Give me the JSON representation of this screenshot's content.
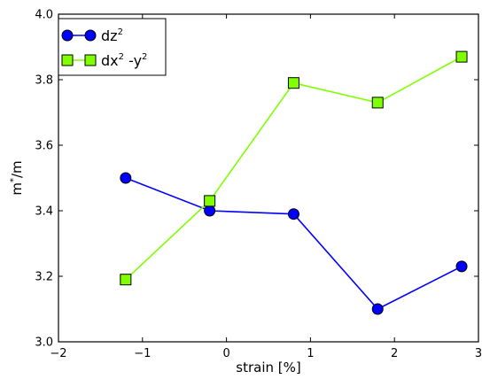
{
  "chart_data": {
    "type": "line",
    "xlabel": "strain [%]",
    "ylabel": "m*/m",
    "ylabel_parts": {
      "base": "m",
      "sup": "*",
      "rest": "/m"
    },
    "xlim": [
      -2,
      3
    ],
    "ylim": [
      3.0,
      4.0
    ],
    "xticks": [
      -2,
      -1,
      0,
      1,
      2,
      3
    ],
    "yticks": [
      3.0,
      3.2,
      3.4,
      3.6,
      3.8,
      4.0
    ],
    "xtick_labels": [
      "−2",
      "−1",
      "0",
      "1",
      "2",
      "3"
    ],
    "ytick_labels": [
      "3.0",
      "3.2",
      "3.4",
      "3.6",
      "3.8",
      "4.0"
    ],
    "grid": false,
    "legend_position": "upper-left",
    "series": [
      {
        "name": "dz2",
        "legend": {
          "base": "dz",
          "sup": "2"
        },
        "marker": "circle",
        "color": "#0000ff",
        "x": [
          -1.2,
          -0.2,
          0.8,
          1.8,
          2.8
        ],
        "y": [
          3.5,
          3.4,
          3.39,
          3.1,
          3.23
        ]
      },
      {
        "name": "dx2-y2",
        "legend": {
          "base1": "dx",
          "sup1": "2",
          "base2": " -y",
          "sup2": "2"
        },
        "marker": "square",
        "color": "#7fff00",
        "x": [
          -1.2,
          -0.2,
          0.8,
          1.8,
          2.8
        ],
        "y": [
          3.19,
          3.43,
          3.79,
          3.73,
          3.87
        ]
      }
    ]
  }
}
